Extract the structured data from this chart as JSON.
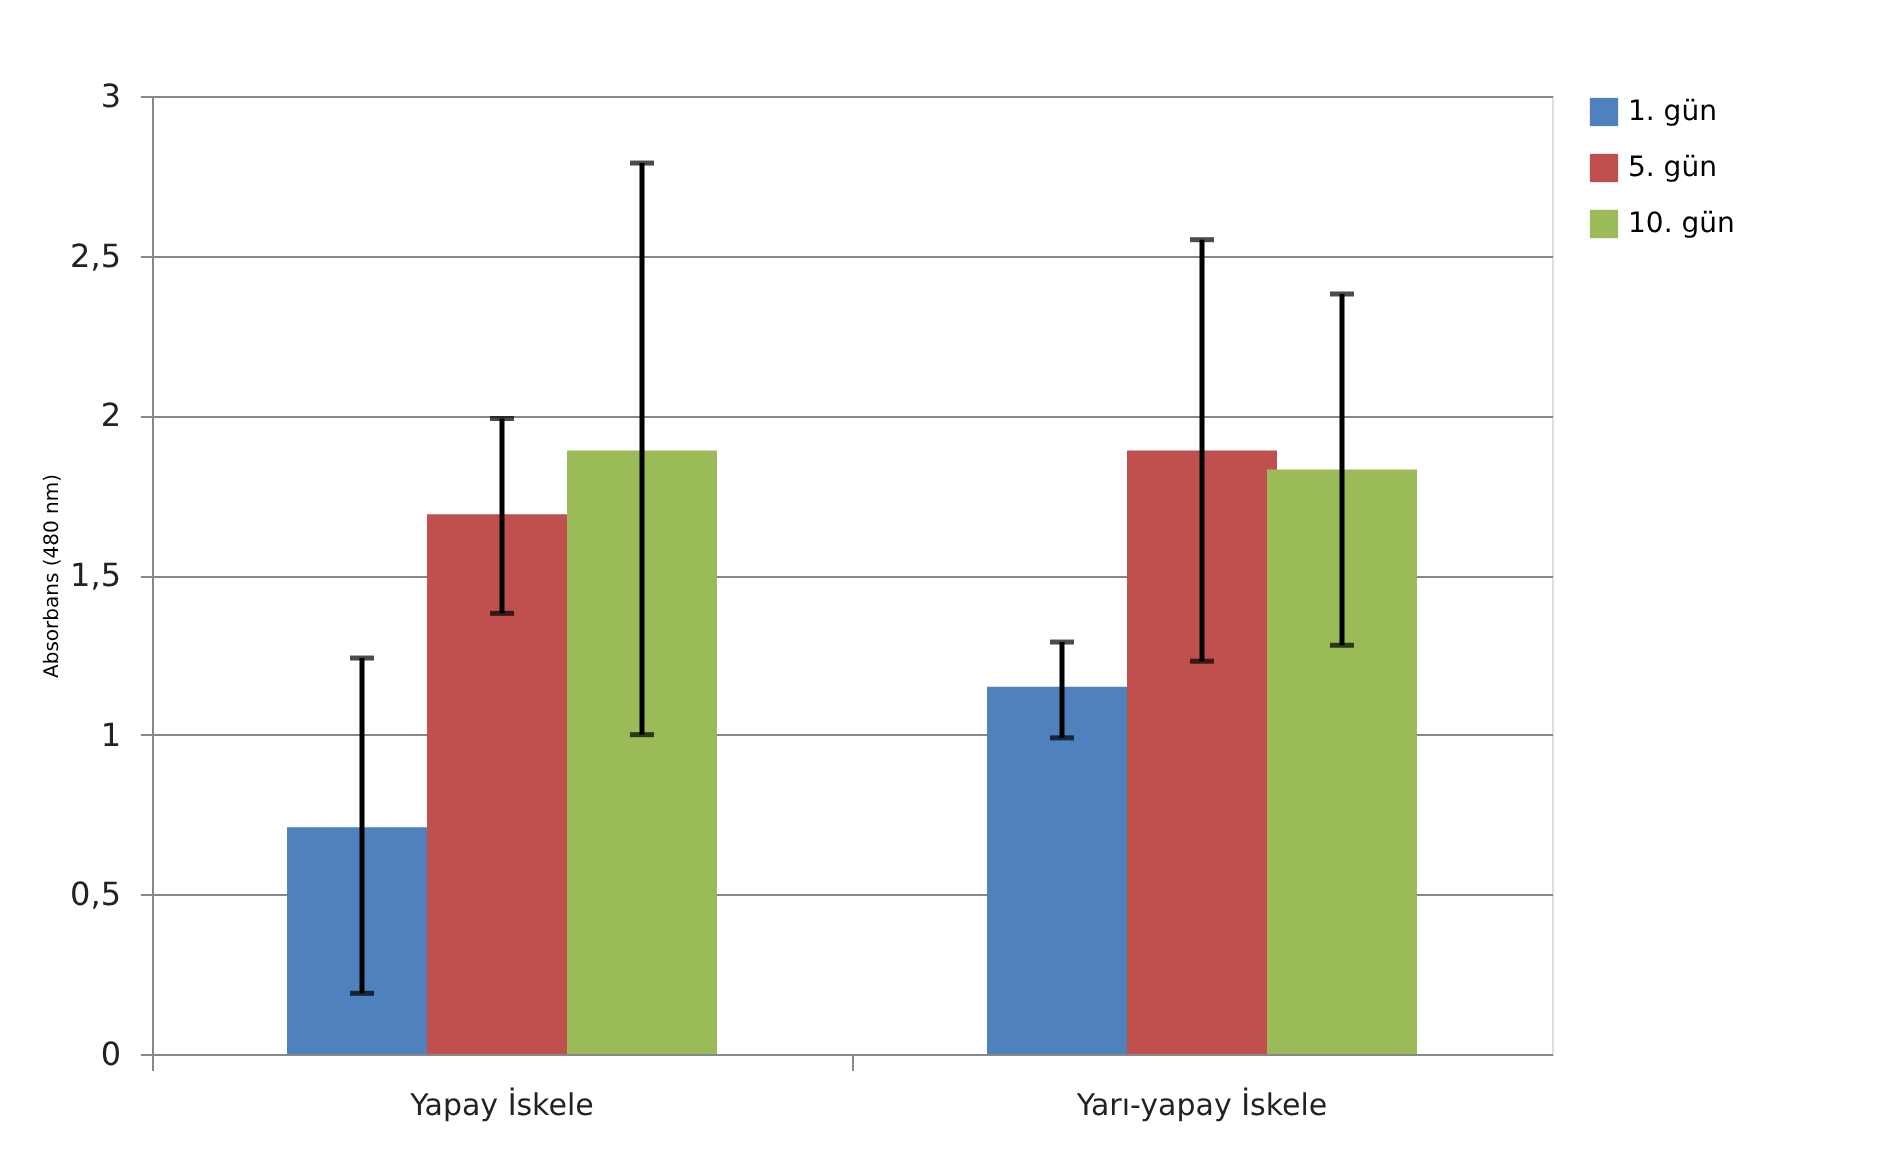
{
  "chart_data": {
    "type": "bar",
    "ylabel": "Absorbans (480 nm)",
    "categories": [
      "Yapay İskele",
      "Yarı-yapay İskele"
    ],
    "series": [
      {
        "name": "1. gün",
        "color": "#4f81bd",
        "values": [
          0.71,
          1.15
        ],
        "errors": [
          [
            0.19,
            1.24
          ],
          [
            0.99,
            1.29
          ]
        ]
      },
      {
        "name": "5. gün",
        "color": "#c0504d",
        "values": [
          1.69,
          1.89
        ],
        "errors": [
          [
            1.38,
            1.99
          ],
          [
            1.23,
            2.55
          ]
        ]
      },
      {
        "name": "10. gün",
        "color": "#9bbb59",
        "values": [
          1.89,
          1.83
        ],
        "errors": [
          [
            1.0,
            2.79
          ],
          [
            1.28,
            2.38
          ]
        ]
      }
    ],
    "ylim": [
      0,
      3
    ],
    "yticks": [
      0,
      {
        "value": 0.5,
        "label": "0,5"
      },
      1,
      {
        "value": 1.5,
        "label": "1,5"
      },
      2,
      {
        "value": 2.5,
        "label": "2,5"
      },
      3
    ],
    "grid": "y",
    "legend": "right"
  }
}
